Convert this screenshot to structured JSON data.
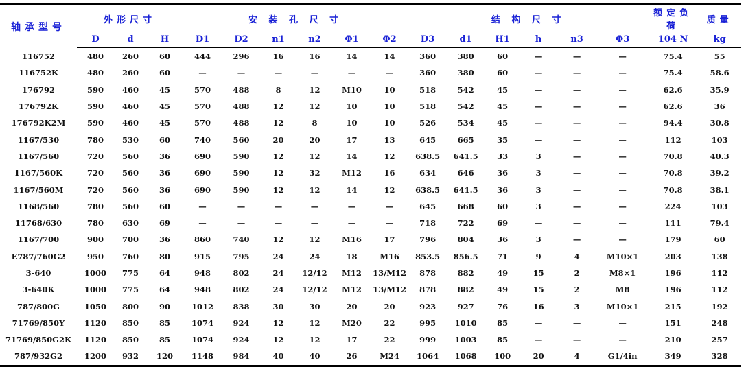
{
  "header": {
    "model": "轴承型号",
    "groups": {
      "outer": "外形尺寸",
      "mount": "安 装 孔 尺 寸",
      "struct": "结 构 尺 寸",
      "load": "额定负荷",
      "mass": "质量"
    },
    "columns": [
      "D",
      "d",
      "H",
      "D1",
      "D2",
      "n1",
      "n2",
      "Φ1",
      "Φ2",
      "D3",
      "d1",
      "H1",
      "h",
      "n3",
      "Φ3",
      "104 N",
      "kg"
    ]
  },
  "rows": [
    [
      "116752",
      "480",
      "260",
      "60",
      "444",
      "296",
      "16",
      "16",
      "14",
      "14",
      "360",
      "380",
      "60",
      "—",
      "—",
      "—",
      "75.4",
      "55"
    ],
    [
      "116752K",
      "480",
      "260",
      "60",
      "—",
      "—",
      "—",
      "—",
      "—",
      "—",
      "360",
      "380",
      "60",
      "—",
      "—",
      "—",
      "75.4",
      "58.6"
    ],
    [
      "176792",
      "590",
      "460",
      "45",
      "570",
      "488",
      "8",
      "12",
      "M10",
      "10",
      "518",
      "542",
      "45",
      "—",
      "—",
      "—",
      "62.6",
      "35.9"
    ],
    [
      "176792K",
      "590",
      "460",
      "45",
      "570",
      "488",
      "12",
      "12",
      "10",
      "10",
      "518",
      "542",
      "45",
      "—",
      "—",
      "—",
      "62.6",
      "36"
    ],
    [
      "176792K2M",
      "590",
      "460",
      "45",
      "570",
      "488",
      "12",
      "8",
      "10",
      "10",
      "526",
      "534",
      "45",
      "—",
      "—",
      "—",
      "94.4",
      "30.8"
    ],
    [
      "1167/530",
      "780",
      "530",
      "60",
      "740",
      "560",
      "20",
      "20",
      "17",
      "13",
      "645",
      "665",
      "35",
      "—",
      "—",
      "—",
      "112",
      "103"
    ],
    [
      "1167/560",
      "720",
      "560",
      "36",
      "690",
      "590",
      "12",
      "12",
      "14",
      "12",
      "638.5",
      "641.5",
      "33",
      "3",
      "—",
      "—",
      "70.8",
      "40.3"
    ],
    [
      "1167/560K",
      "720",
      "560",
      "36",
      "690",
      "590",
      "12",
      "32",
      "M12",
      "16",
      "634",
      "646",
      "36",
      "3",
      "—",
      "—",
      "70.8",
      "39.2"
    ],
    [
      "1167/560M",
      "720",
      "560",
      "36",
      "690",
      "590",
      "12",
      "12",
      "14",
      "12",
      "638.5",
      "641.5",
      "36",
      "3",
      "—",
      "—",
      "70.8",
      "38.1"
    ],
    [
      "1168/560",
      "780",
      "560",
      "60",
      "—",
      "—",
      "—",
      "—",
      "—",
      "—",
      "645",
      "668",
      "60",
      "3",
      "—",
      "—",
      "224",
      "103"
    ],
    [
      "11768/630",
      "780",
      "630",
      "69",
      "—",
      "—",
      "—",
      "—",
      "—",
      "—",
      "718",
      "722",
      "69",
      "—",
      "—",
      "—",
      "111",
      "79.4"
    ],
    [
      "1167/700",
      "900",
      "700",
      "36",
      "860",
      "740",
      "12",
      "12",
      "M16",
      "17",
      "796",
      "804",
      "36",
      "3",
      "—",
      "—",
      "179",
      "60"
    ],
    [
      "E787/760G2",
      "950",
      "760",
      "80",
      "915",
      "795",
      "24",
      "24",
      "18",
      "M16",
      "853.5",
      "856.5",
      "71",
      "9",
      "4",
      "M10×1",
      "203",
      "138"
    ],
    [
      "3-640",
      "1000",
      "775",
      "64",
      "948",
      "802",
      "24",
      "12/12",
      "M12",
      "13/M12",
      "878",
      "882",
      "49",
      "15",
      "2",
      "M8×1",
      "196",
      "112"
    ],
    [
      "3-640K",
      "1000",
      "775",
      "64",
      "948",
      "802",
      "24",
      "12/12",
      "M12",
      "13/M12",
      "878",
      "882",
      "49",
      "15",
      "2",
      "M8",
      "196",
      "112"
    ],
    [
      "787/800G",
      "1050",
      "800",
      "90",
      "1012",
      "838",
      "30",
      "30",
      "20",
      "20",
      "923",
      "927",
      "76",
      "16",
      "3",
      "M10×1",
      "215",
      "192"
    ],
    [
      "71769/850Y",
      "1120",
      "850",
      "85",
      "1074",
      "924",
      "12",
      "12",
      "M20",
      "22",
      "995",
      "1010",
      "85",
      "—",
      "—",
      "—",
      "151",
      "248"
    ],
    [
      "71769/850G2K",
      "1120",
      "850",
      "85",
      "1074",
      "924",
      "12",
      "12",
      "17",
      "22",
      "999",
      "1003",
      "85",
      "—",
      "—",
      "—",
      "210",
      "257"
    ],
    [
      "787/932G2",
      "1200",
      "932",
      "120",
      "1148",
      "984",
      "40",
      "40",
      "26",
      "M24",
      "1064",
      "1068",
      "100",
      "20",
      "4",
      "G1/4in",
      "349",
      "328"
    ]
  ]
}
